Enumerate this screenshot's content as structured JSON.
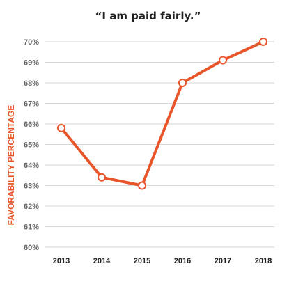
{
  "chart_data": {
    "type": "line",
    "title": "“I am paid fairly.”",
    "xlabel": "",
    "ylabel": "FAVORABILITY PERCENTAGE",
    "x": [
      "2013",
      "2014",
      "2015",
      "2016",
      "2017",
      "2018"
    ],
    "series": [
      {
        "values": [
          65.8,
          63.4,
          63.0,
          68.0,
          69.1,
          70.0
        ]
      }
    ],
    "ylim": [
      60,
      70
    ],
    "y_ticks": [
      "60%",
      "61%",
      "62%",
      "63%",
      "64%",
      "65%",
      "66%",
      "67%",
      "68%",
      "69%",
      "70%"
    ],
    "grid": true,
    "legend": "none",
    "colors": {
      "line": "#e8552a",
      "marker_fill": "#ffffff",
      "grid": "#d6d6d6",
      "axis_label": "#e8552a"
    }
  }
}
